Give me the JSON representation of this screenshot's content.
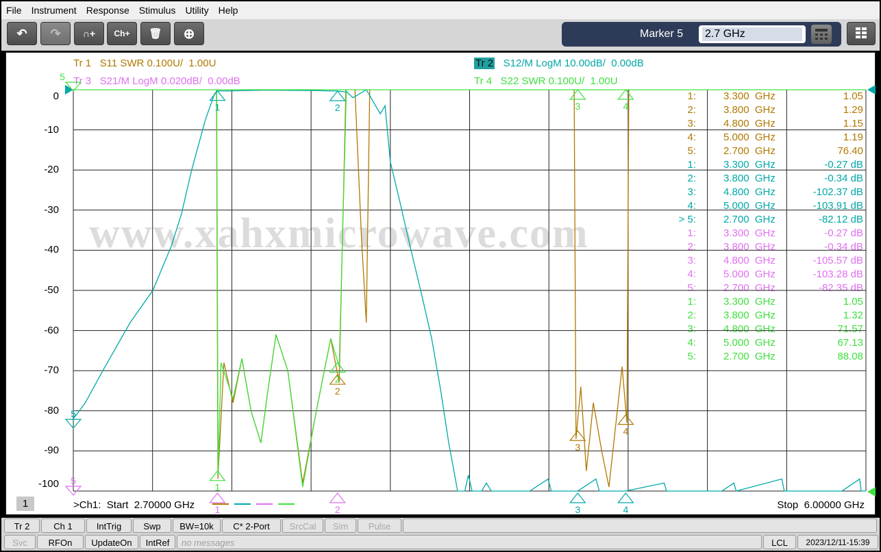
{
  "menu": [
    "File",
    "Instrument",
    "Response",
    "Stimulus",
    "Utility",
    "Help"
  ],
  "toolbar": {
    "buttons": [
      {
        "name": "undo-button",
        "icon": "undo-icon",
        "glyph": "↶"
      },
      {
        "name": "redo-button",
        "icon": "redo-icon",
        "glyph": "↷"
      },
      {
        "name": "add-trace-button",
        "icon": "add-trace-icon",
        "glyph": "∩+"
      },
      {
        "name": "add-channel-button",
        "icon": "add-channel-icon",
        "glyph": "Ch+"
      },
      {
        "name": "delete-button",
        "icon": "trash-icon",
        "glyph": "🗑"
      },
      {
        "name": "zoom-button",
        "icon": "zoom-in-icon",
        "glyph": "⊕"
      }
    ],
    "marker_label": "Marker 5",
    "marker_value": "2.7 GHz"
  },
  "traces": [
    {
      "id": "Tr 1",
      "desc": "S11 SWR 0.100U/  1.00U",
      "color": "#b07800",
      "active": false
    },
    {
      "id": "Tr 2",
      "desc": "S12/M LogM 10.00dB/  0.00dB",
      "color": "#00a8a8",
      "active": true
    },
    {
      "id": "Tr 3",
      "desc": "S21/M LogM 0.020dB/  0.00dB",
      "color": "#e070f0",
      "active": false
    },
    {
      "id": "Tr 4",
      "desc": "S22 SWR 0.100U/  1.00U",
      "color": "#40e040",
      "active": false
    }
  ],
  "watermark": "www.xahxmicrowave.com",
  "chart": {
    "x_range_ghz": [
      2.7,
      6.0
    ],
    "y_ticks": [
      "0",
      "-10",
      "-20",
      "-30",
      "-40",
      "-50",
      "-60",
      "-70",
      "-80",
      "-90",
      "-100"
    ],
    "grid": true,
    "series": [
      {
        "trace": "Tr 2",
        "unit": "dB",
        "scale": 10,
        "ref": 0,
        "ref_pos": "top",
        "points": [
          [
            2.7,
            -82
          ],
          [
            2.75,
            -78
          ],
          [
            2.823,
            -70
          ],
          [
            2.88,
            -64
          ],
          [
            2.937,
            -58
          ],
          [
            3.031,
            -50
          ],
          [
            3.108,
            -39
          ],
          [
            3.15,
            -31
          ],
          [
            3.193,
            -20
          ],
          [
            3.25,
            -7.5
          ],
          [
            3.288,
            -1
          ],
          [
            3.3,
            -0.27
          ],
          [
            3.336,
            -0.3
          ],
          [
            3.5,
            -0.1
          ],
          [
            3.7,
            -0.2
          ],
          [
            3.8,
            -0.34
          ],
          [
            3.84,
            -0.6
          ],
          [
            3.864,
            -2
          ],
          [
            3.892,
            -1
          ],
          [
            3.92,
            0
          ],
          [
            3.949,
            -3
          ],
          [
            3.978,
            -6
          ],
          [
            3.998,
            -4
          ],
          [
            4.02,
            -18
          ],
          [
            4.06,
            -28
          ],
          [
            4.106,
            -40
          ],
          [
            4.15,
            -51
          ],
          [
            4.192,
            -62
          ],
          [
            4.23,
            -75
          ],
          [
            4.263,
            -88
          ],
          [
            4.3,
            -100
          ],
          [
            4.33,
            -100
          ],
          [
            4.345,
            -96
          ],
          [
            4.36,
            -100
          ],
          [
            4.4,
            -100
          ],
          [
            4.42,
            -98
          ],
          [
            4.44,
            -100
          ],
          [
            4.6,
            -100
          ],
          [
            4.677,
            -97
          ],
          [
            4.69,
            -100
          ],
          [
            4.8,
            -100
          ],
          [
            4.876,
            -97
          ],
          [
            4.89,
            -100
          ],
          [
            5.0,
            -100
          ],
          [
            5.16,
            -98
          ],
          [
            5.17,
            -100
          ],
          [
            5.4,
            -100
          ],
          [
            5.45,
            -98
          ],
          [
            5.46,
            -100
          ],
          [
            5.65,
            -97
          ],
          [
            5.66,
            -100
          ],
          [
            5.9,
            -100
          ],
          [
            5.974,
            -97
          ],
          [
            5.98,
            -100
          ],
          [
            6.0,
            -100
          ]
        ]
      },
      {
        "trace": "Tr 1",
        "unit": "U",
        "scale": 0.1,
        "ref": 1.0,
        "ref_pos": "bottom",
        "points": [
          [
            2.7,
            3
          ],
          [
            3.288,
            3
          ],
          [
            3.296,
            2.0
          ],
          [
            3.302,
            1.03
          ],
          [
            3.327,
            1.32
          ],
          [
            3.365,
            1.22
          ],
          [
            3.402,
            1.33
          ],
          [
            3.44,
            1.2
          ],
          [
            3.481,
            1.12
          ],
          [
            3.51,
            1.25
          ],
          [
            3.544,
            1.39
          ],
          [
            3.593,
            1.3
          ],
          [
            3.655,
            1.02
          ],
          [
            3.712,
            1.2
          ],
          [
            3.772,
            1.38
          ],
          [
            3.807,
            1.27
          ],
          [
            3.835,
            2.0
          ],
          [
            3.87,
            3
          ],
          [
            3.9,
            1.63
          ],
          [
            3.92,
            1.42
          ],
          [
            3.935,
            3
          ],
          [
            4.785,
            3
          ],
          [
            4.793,
            1.13
          ],
          [
            4.813,
            1.26
          ],
          [
            4.836,
            1.05
          ],
          [
            4.865,
            1.22
          ],
          [
            4.9,
            1.1
          ],
          [
            4.93,
            1.01
          ],
          [
            4.985,
            1.31
          ],
          [
            5.005,
            1.17
          ],
          [
            5.013,
            3
          ],
          [
            6.0,
            3
          ]
        ]
      },
      {
        "trace": "Tr 4",
        "unit": "U",
        "scale": 0.1,
        "ref": 1.0,
        "ref_pos": "bottom",
        "points": [
          [
            2.7,
            3
          ],
          [
            3.288,
            3
          ],
          [
            3.297,
            2.0
          ],
          [
            3.303,
            1.04
          ],
          [
            3.315,
            1.32
          ],
          [
            3.365,
            1.23
          ],
          [
            3.402,
            1.33
          ],
          [
            3.44,
            1.2
          ],
          [
            3.481,
            1.12
          ],
          [
            3.51,
            1.25
          ],
          [
            3.544,
            1.39
          ],
          [
            3.593,
            1.3
          ],
          [
            3.655,
            1.01
          ],
          [
            3.712,
            1.2
          ],
          [
            3.772,
            1.38
          ],
          [
            3.807,
            1.31
          ],
          [
            3.837,
            2.0
          ],
          [
            3.86,
            3
          ],
          [
            6.0,
            3
          ]
        ]
      }
    ]
  },
  "markers": [
    {
      "trace": "Tr 1",
      "rows": [
        [
          "1:",
          "3.300  GHz",
          "1.05"
        ],
        [
          "2:",
          "3.800  GHz",
          "1.29"
        ],
        [
          "3:",
          "4.800  GHz",
          "1.15"
        ],
        [
          "4:",
          "5.000  GHz",
          "1.19"
        ],
        [
          "5:",
          "2.700  GHz",
          "76.40"
        ]
      ]
    },
    {
      "trace": "Tr 2",
      "rows": [
        [
          "1:",
          "3.300  GHz",
          "-0.27 dB"
        ],
        [
          "2:",
          "3.800  GHz",
          "-0.34 dB"
        ],
        [
          "3:",
          "4.800  GHz",
          "-102.37 dB"
        ],
        [
          "4:",
          "5.000  GHz",
          "-103.91 dB"
        ],
        [
          "> 5:",
          "2.700  GHz",
          "-82.12 dB"
        ]
      ]
    },
    {
      "trace": "Tr 3",
      "rows": [
        [
          "1:",
          "3.300  GHz",
          "-0.27 dB"
        ],
        [
          "2:",
          "3.800  GHz",
          "-0.34 dB"
        ],
        [
          "3:",
          "4.800  GHz",
          "-105.57 dB"
        ],
        [
          "4:",
          "5.000  GHz",
          "-103.28 dB"
        ],
        [
          "5:",
          "2.700  GHz",
          "-82.35 dB"
        ]
      ]
    },
    {
      "trace": "Tr 4",
      "rows": [
        [
          "1:",
          "3.300  GHz",
          "1.05"
        ],
        [
          "2:",
          "3.800  GHz",
          "1.32"
        ],
        [
          "3:",
          "4.800  GHz",
          "71.57"
        ],
        [
          "4:",
          "5.000  GHz",
          "67.13"
        ],
        [
          "5:",
          "2.700  GHz",
          "88.08"
        ]
      ]
    }
  ],
  "marker_points": [
    {
      "trace": "Tr 1",
      "n": "2",
      "ghz": 3.8,
      "value": 1.29
    },
    {
      "trace": "Tr 1",
      "n": "3",
      "ghz": 4.8,
      "value": 1.15
    },
    {
      "trace": "Tr 1",
      "n": "4",
      "ghz": 5.0,
      "value": 1.19
    },
    {
      "trace": "Tr 2",
      "n": "1",
      "ghz": 3.3,
      "value": -0.27
    },
    {
      "trace": "Tr 2",
      "n": "2",
      "ghz": 3.8,
      "value": -0.34
    },
    {
      "trace": "Tr 2",
      "n": "3",
      "ghz": 4.8,
      "value": -102.37
    },
    {
      "trace": "Tr 2",
      "n": "4",
      "ghz": 5.0,
      "value": -103.91
    },
    {
      "trace": "Tr 2",
      "n": "5",
      "ghz": 2.7,
      "value": -82.12
    },
    {
      "trace": "Tr 3",
      "n": "1",
      "ghz": 3.3,
      "value": -0.27
    },
    {
      "trace": "Tr 3",
      "n": "2",
      "ghz": 3.8,
      "value": -0.34
    },
    {
      "trace": "Tr 3",
      "n": "5",
      "ghz": 2.7,
      "value": -82.35
    },
    {
      "trace": "Tr 4",
      "n": "1",
      "ghz": 3.3,
      "value": 1.05
    },
    {
      "trace": "Tr 4",
      "n": "2",
      "ghz": 3.8,
      "value": 1.32
    },
    {
      "trace": "Tr 4",
      "n": "3",
      "ghz": 4.8,
      "value": 71.57
    },
    {
      "trace": "Tr 4",
      "n": "4",
      "ghz": 5.0,
      "value": 67.13
    },
    {
      "trace": "Tr 4",
      "n": "5",
      "ghz": 2.7,
      "value": 88.08
    }
  ],
  "channel": {
    "number": "1",
    "start": ">Ch1:  Start  2.70000 GHz",
    "stop": "Stop  6.00000 GHz"
  },
  "status1": [
    {
      "label": "Tr 2",
      "dim": false
    },
    {
      "label": "Ch 1",
      "dim": false
    },
    {
      "label": "IntTrig",
      "dim": false
    },
    {
      "label": "Swp",
      "dim": false
    },
    {
      "label": "BW=10k",
      "dim": false
    },
    {
      "label": "C* 2-Port",
      "dim": false
    },
    {
      "label": "SrcCal",
      "dim": true
    },
    {
      "label": "Sim",
      "dim": true
    },
    {
      "label": "Pulse",
      "dim": true
    }
  ],
  "status2": [
    {
      "label": "Svc",
      "dim": true
    },
    {
      "label": "RFOn",
      "dim": false
    },
    {
      "label": "UpdateOn",
      "dim": false
    },
    {
      "label": "IntRef",
      "dim": false
    }
  ],
  "message": "no messages",
  "remote": "LCL",
  "datetime": "2023/12/11-15:39"
}
